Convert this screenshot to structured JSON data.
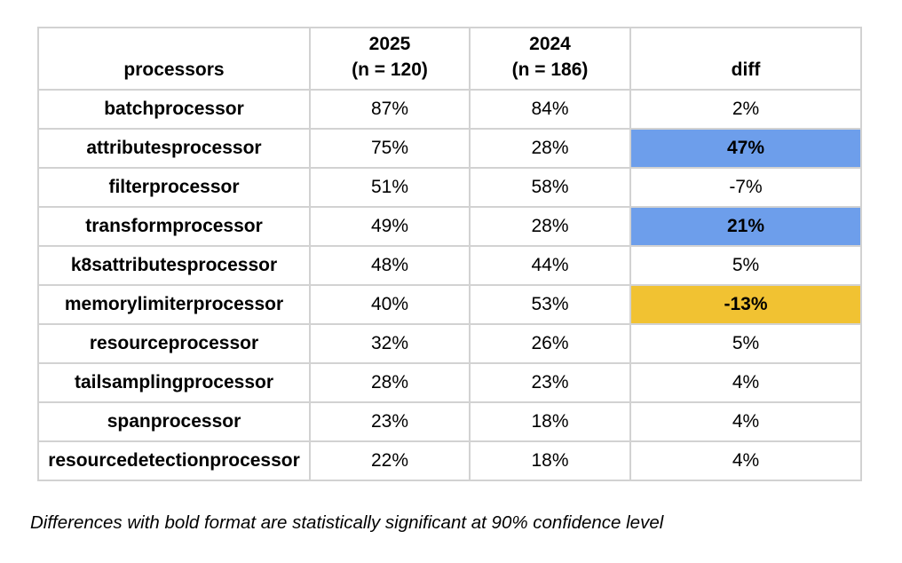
{
  "chart_data": {
    "type": "table",
    "header": {
      "col_processors": "processors",
      "col_2025_line1": "2025",
      "col_2025_line2": "(n = 120)",
      "col_2024_line1": "2024",
      "col_2024_line2": "(n = 186)",
      "col_diff": "diff"
    },
    "rows": [
      {
        "name": "batchprocessor",
        "y2025": "87%",
        "y2024": "84%",
        "diff": "2%",
        "highlight": "none"
      },
      {
        "name": "attributesprocessor",
        "y2025": "75%",
        "y2024": "28%",
        "diff": "47%",
        "highlight": "blue"
      },
      {
        "name": "filterprocessor",
        "y2025": "51%",
        "y2024": "58%",
        "diff": "-7%",
        "highlight": "none"
      },
      {
        "name": "transformprocessor",
        "y2025": "49%",
        "y2024": "28%",
        "diff": "21%",
        "highlight": "blue"
      },
      {
        "name": "k8sattributesprocessor",
        "y2025": "48%",
        "y2024": "44%",
        "diff": "5%",
        "highlight": "none"
      },
      {
        "name": "memorylimiterprocessor",
        "y2025": "40%",
        "y2024": "53%",
        "diff": "-13%",
        "highlight": "orange"
      },
      {
        "name": "resourceprocessor",
        "y2025": "32%",
        "y2024": "26%",
        "diff": "5%",
        "highlight": "none"
      },
      {
        "name": "tailsamplingprocessor",
        "y2025": "28%",
        "y2024": "23%",
        "diff": "4%",
        "highlight": "none"
      },
      {
        "name": "spanprocessor",
        "y2025": "23%",
        "y2024": "18%",
        "diff": "4%",
        "highlight": "none"
      },
      {
        "name": "resourcedetectionprocessor",
        "y2025": "22%",
        "y2024": "18%",
        "diff": "4%",
        "highlight": "none"
      }
    ],
    "footnote": "Differences with bold format are statistically significant at 90% confidence level",
    "highlight_colors": {
      "blue": "#6d9eeb",
      "orange": "#f1c232"
    },
    "gridline_color": "#d2d2d2"
  }
}
